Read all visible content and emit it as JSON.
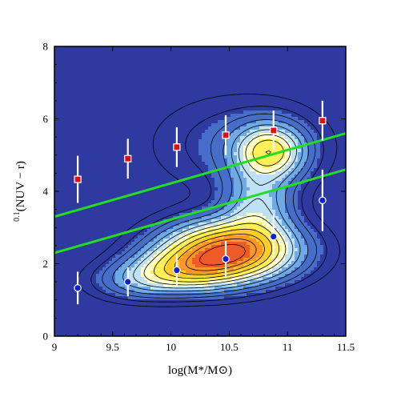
{
  "chart_data": {
    "type": "scatter",
    "background": "contour density map (blue to red) with black contour lines",
    "xlabel": "log(M*/M⊙)",
    "ylabel_prefix": "0.1",
    "ylabel_main": "(NUV − r)",
    "xlim": [
      9,
      11.5
    ],
    "ylim": [
      0,
      8
    ],
    "x_ticks": [
      "9",
      "9.5",
      "10",
      "10.5",
      "11",
      "11.5"
    ],
    "y_ticks": [
      "0",
      "2",
      "4",
      "6",
      "8"
    ],
    "grid": false,
    "series": [
      {
        "marker": "square",
        "color": "#dd1111",
        "x": [
          9.2,
          9.63,
          10.05,
          10.47,
          10.88,
          11.3
        ],
        "y": [
          4.33,
          4.9,
          5.22,
          5.55,
          5.68,
          5.95
        ],
        "err": [
          0.65,
          0.55,
          0.55,
          0.55,
          0.55,
          0.55
        ]
      },
      {
        "marker": "circle",
        "color": "#1122cc",
        "x": [
          9.2,
          9.63,
          10.05,
          10.47,
          10.88,
          11.3
        ],
        "y": [
          1.33,
          1.5,
          1.82,
          2.13,
          2.75,
          3.75
        ],
        "err": [
          0.45,
          0.4,
          0.45,
          0.5,
          0.6,
          0.85
        ]
      }
    ],
    "lines": [
      {
        "color": "#22dd22",
        "x": [
          9,
          11.5
        ],
        "y": [
          3.3,
          5.6
        ]
      },
      {
        "color": "#22dd22",
        "x": [
          9,
          11.5
        ],
        "y": [
          2.3,
          4.6
        ]
      }
    ],
    "density_components": [
      {
        "cx": 10.5,
        "cy": 2.35,
        "sx": 0.38,
        "sy": 0.55,
        "amp": 1.0
      },
      {
        "cx": 10.1,
        "cy": 1.8,
        "sx": 0.32,
        "sy": 0.4,
        "amp": 0.45
      },
      {
        "cx": 9.7,
        "cy": 1.5,
        "sx": 0.28,
        "sy": 0.35,
        "amp": 0.18
      },
      {
        "cx": 10.75,
        "cy": 3.6,
        "sx": 0.2,
        "sy": 0.7,
        "amp": 0.32
      },
      {
        "cx": 10.85,
        "cy": 5.1,
        "sx": 0.2,
        "sy": 0.5,
        "amp": 0.55
      },
      {
        "cx": 10.6,
        "cy": 5.3,
        "sx": 0.5,
        "sy": 0.9,
        "amp": 0.14
      }
    ],
    "colors": {
      "bg": "#2e3aa0",
      "error_bar": "#ffffff",
      "contour_line": "#000000"
    }
  }
}
